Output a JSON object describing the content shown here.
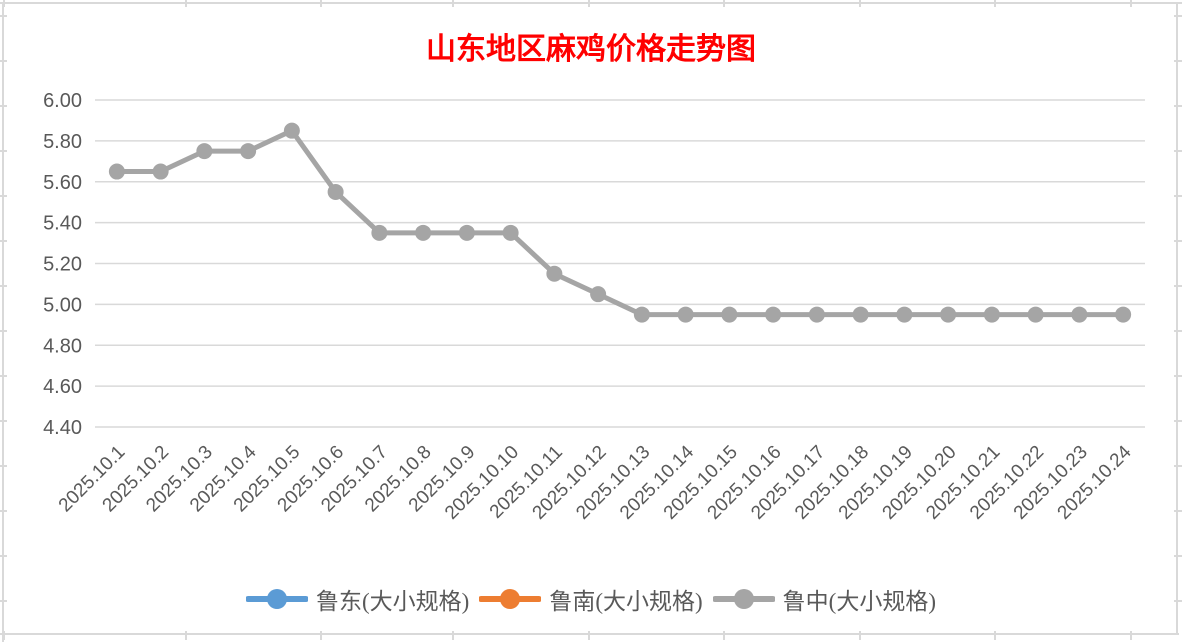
{
  "title": {
    "text": "山东地区麻鸡价格走势图",
    "color": "#FF0000"
  },
  "chart_data": {
    "type": "line",
    "title": "山东地区麻鸡价格走势图",
    "categories": [
      "2025.10.1",
      "2025.10.2",
      "2025.10.3",
      "2025.10.4",
      "2025.10.5",
      "2025.10.6",
      "2025.10.7",
      "2025.10.8",
      "2025.10.9",
      "2025.10.10",
      "2025.10.11",
      "2025.10.12",
      "2025.10.13",
      "2025.10.14",
      "2025.10.15",
      "2025.10.16",
      "2025.10.17",
      "2025.10.18",
      "2025.10.19",
      "2025.10.20",
      "2025.10.21",
      "2025.10.22",
      "2025.10.23",
      "2025.10.24"
    ],
    "series": [
      {
        "name": "鲁东(大小规格)",
        "color": "#5B9BD5",
        "plotted": false,
        "values": []
      },
      {
        "name": "鲁南(大小规格)",
        "color": "#ED7D31",
        "plotted": false,
        "values": []
      },
      {
        "name": "鲁中(大小规格)",
        "color": "#A5A5A5",
        "plotted": true,
        "values": [
          5.65,
          5.65,
          5.75,
          5.75,
          5.85,
          5.55,
          5.35,
          5.35,
          5.35,
          5.35,
          5.15,
          5.05,
          4.95,
          4.95,
          4.95,
          4.95,
          4.95,
          4.95,
          4.95,
          4.95,
          4.95,
          4.95,
          4.95,
          4.95
        ]
      }
    ],
    "ylim": [
      4.4,
      6.0
    ],
    "ytick_step": 0.2,
    "ytick_labels": [
      "6.00",
      "5.80",
      "5.60",
      "5.40",
      "5.20",
      "5.00",
      "4.80",
      "4.60",
      "4.40"
    ],
    "grid": true,
    "legend_position": "bottom",
    "xlabel": "",
    "ylabel": ""
  },
  "style": {
    "axis_label_color": "#595959",
    "gridline_color": "#D9D9D9",
    "worksheet_line_color": "#D9D9D9",
    "marker_shape": "circle"
  }
}
